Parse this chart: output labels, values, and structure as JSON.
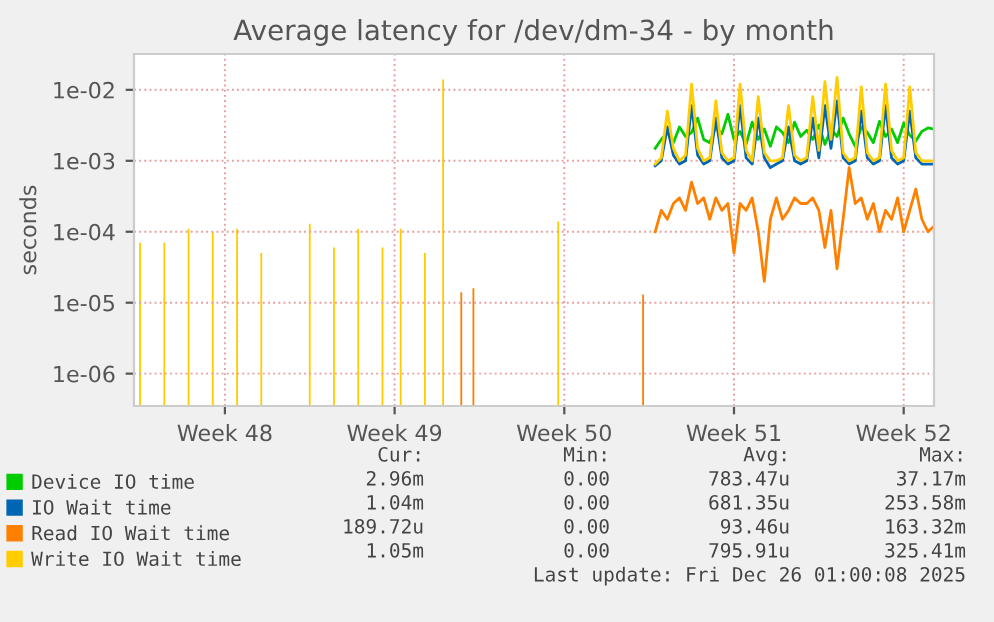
{
  "chart_data": {
    "type": "line",
    "title": "Average latency for /dev/dm-34 - by month",
    "ylabel": "seconds",
    "log": "y",
    "grid": true,
    "legend": "bottom",
    "marker": "none",
    "line_style": "solid",
    "categories": [
      null,
      null,
      null,
      null,
      null,
      null,
      null,
      null,
      null,
      null,
      null,
      null,
      null,
      null,
      null,
      "Week 48",
      null,
      null,
      null,
      null,
      null,
      null,
      null,
      null,
      null,
      null,
      null,
      null,
      null,
      null,
      null,
      null,
      null,
      null,
      null,
      null,
      null,
      null,
      null,
      null,
      null,
      null,
      null,
      "Week 49",
      null,
      null,
      null,
      null,
      null,
      null,
      null,
      null,
      null,
      null,
      null,
      null,
      null,
      null,
      null,
      null,
      null,
      null,
      null,
      null,
      null,
      null,
      null,
      null,
      null,
      null,
      null,
      "Week 50",
      null,
      null,
      null,
      null,
      null,
      null,
      null,
      null,
      null,
      null,
      null,
      null,
      null,
      null,
      null,
      null,
      null,
      null,
      null,
      null,
      null,
      null,
      null,
      null,
      null,
      null,
      null,
      "Week 51",
      null,
      null,
      null,
      null,
      null,
      null,
      null,
      null,
      null,
      null,
      null,
      null,
      null,
      null,
      null,
      null,
      null,
      null,
      null,
      null,
      null,
      null,
      null,
      null,
      null,
      null,
      null,
      "Week 52",
      null,
      null,
      null,
      null,
      null
    ],
    "ylim": [
      3.5e-07,
      0.032
    ],
    "yticks": [
      {
        "value": 1e-06,
        "label": "1e-06"
      },
      {
        "value": 1e-05,
        "label": "1e-05"
      },
      {
        "value": 0.0001,
        "label": "1e-04"
      },
      {
        "value": 0.001,
        "label": "1e-03"
      },
      {
        "value": 0.01,
        "label": "1e-02"
      }
    ],
    "annotations": [
      "Cur:",
      "Min:",
      "Avg:",
      "Max:",
      "2.96m",
      "0.00",
      "783.47u",
      "37.17m",
      "1.04m",
      "0.00",
      "681.35u",
      "253.58m",
      "189.72u",
      "0.00",
      "93.46u",
      "163.32m",
      "1.05m",
      "0.00",
      "795.91u",
      "325.41m",
      "Last update: Fri Dec 26 01:00:08 2025"
    ],
    "series": [
      {
        "name": "Device IO time",
        "color": "#00cc00",
        "values": [
          null,
          null,
          null,
          null,
          null,
          null,
          null,
          null,
          null,
          null,
          null,
          null,
          null,
          null,
          null,
          null,
          null,
          null,
          null,
          null,
          null,
          null,
          null,
          null,
          null,
          null,
          null,
          null,
          null,
          null,
          null,
          null,
          null,
          null,
          null,
          null,
          null,
          null,
          null,
          null,
          null,
          null,
          null,
          null,
          null,
          null,
          null,
          null,
          null,
          null,
          null,
          null,
          null,
          null,
          null,
          null,
          null,
          null,
          null,
          null,
          null,
          null,
          null,
          null,
          null,
          null,
          null,
          null,
          null,
          null,
          null,
          null,
          null,
          null,
          null,
          null,
          null,
          null,
          null,
          null,
          null,
          null,
          null,
          null,
          null,
          null,
          0.0015,
          0.002,
          0.0025,
          0.0018,
          0.003,
          0.0022,
          0.0025,
          0.004,
          0.002,
          0.0018,
          0.003,
          0.0024,
          0.0045,
          0.002,
          0.0026,
          0.0017,
          0.0035,
          0.002,
          0.0028,
          0.0016,
          0.003,
          0.0025,
          0.0018,
          0.0035,
          0.0022,
          0.0027,
          0.002,
          0.0032,
          0.0017,
          0.0028,
          0.0022,
          0.004,
          0.0024,
          0.0016,
          0.003,
          0.0025,
          0.0018,
          0.0036,
          0.0022,
          0.0028,
          0.0018,
          0.0034,
          0.0023,
          0.0019,
          0.0026,
          0.0029,
          0.0028
        ]
      },
      {
        "name": "IO Wait time",
        "color": "#0066b3",
        "values": [
          null,
          null,
          null,
          null,
          null,
          null,
          null,
          null,
          null,
          null,
          null,
          null,
          null,
          null,
          null,
          null,
          null,
          null,
          null,
          null,
          null,
          null,
          null,
          null,
          null,
          null,
          null,
          null,
          null,
          null,
          null,
          null,
          null,
          null,
          null,
          null,
          null,
          null,
          null,
          null,
          null,
          null,
          null,
          null,
          null,
          null,
          null,
          null,
          null,
          null,
          null,
          null,
          null,
          null,
          null,
          null,
          null,
          null,
          null,
          null,
          null,
          null,
          null,
          null,
          null,
          null,
          null,
          null,
          null,
          null,
          null,
          null,
          null,
          null,
          null,
          null,
          null,
          null,
          null,
          null,
          null,
          null,
          null,
          null,
          null,
          null,
          0.00085,
          0.001,
          0.003,
          0.0012,
          0.0009,
          0.001,
          0.006,
          0.0012,
          0.0009,
          0.001,
          0.004,
          0.0011,
          0.0009,
          0.001,
          0.006,
          0.0011,
          0.0009,
          0.004,
          0.0011,
          0.0008,
          0.0009,
          0.001,
          0.003,
          0.001,
          0.0009,
          0.001,
          0.004,
          0.0011,
          0.006,
          0.0015,
          0.007,
          0.0011,
          0.0009,
          0.001,
          0.005,
          0.0011,
          0.0009,
          0.001,
          0.006,
          0.0011,
          0.0009,
          0.001,
          0.005,
          0.0011,
          0.0009,
          0.0009,
          0.0009
        ]
      },
      {
        "name": "Read IO Wait time",
        "color": "#ff8000",
        "values": [
          null,
          null,
          null,
          null,
          null,
          null,
          null,
          null,
          null,
          null,
          null,
          null,
          null,
          null,
          null,
          null,
          null,
          null,
          null,
          null,
          null,
          null,
          null,
          null,
          null,
          null,
          null,
          null,
          null,
          null,
          null,
          null,
          null,
          null,
          null,
          null,
          null,
          null,
          null,
          null,
          null,
          null,
          null,
          null,
          null,
          null,
          null,
          null,
          null,
          null,
          null,
          null,
          null,
          null,
          null,
          null,
          null,
          null,
          null,
          null,
          null,
          null,
          null,
          null,
          null,
          null,
          null,
          null,
          null,
          null,
          null,
          null,
          null,
          null,
          null,
          null,
          null,
          null,
          null,
          null,
          null,
          null,
          null,
          null,
          null,
          null,
          0.0001,
          0.0002,
          0.00015,
          0.00025,
          0.0003,
          0.0002,
          0.0005,
          0.00025,
          0.0003,
          0.00015,
          0.0003,
          0.0002,
          0.00025,
          5e-05,
          0.00025,
          0.0002,
          0.0003,
          0.0001,
          2e-05,
          0.00015,
          0.0003,
          0.00015,
          0.0002,
          0.0003,
          0.00025,
          0.00025,
          0.0003,
          0.0002,
          6e-05,
          0.0002,
          3e-05,
          0.00015,
          0.0008,
          0.00025,
          0.0003,
          0.00015,
          0.00025,
          0.0001,
          0.0002,
          0.00015,
          0.0003,
          0.0001,
          0.0002,
          0.0004,
          0.00015,
          0.0001,
          0.00012
        ]
      },
      {
        "name": "Write IO Wait time",
        "color": "#ffcc00",
        "values": [
          null,
          null,
          null,
          null,
          null,
          null,
          null,
          null,
          null,
          null,
          null,
          null,
          null,
          null,
          null,
          null,
          null,
          null,
          null,
          null,
          null,
          null,
          null,
          null,
          null,
          null,
          null,
          null,
          null,
          null,
          null,
          null,
          null,
          null,
          null,
          null,
          null,
          null,
          null,
          null,
          null,
          null,
          null,
          null,
          null,
          null,
          null,
          null,
          null,
          null,
          null,
          null,
          null,
          null,
          null,
          null,
          null,
          null,
          null,
          null,
          null,
          null,
          null,
          null,
          null,
          null,
          null,
          null,
          null,
          null,
          null,
          null,
          null,
          null,
          null,
          null,
          null,
          null,
          null,
          null,
          null,
          null,
          null,
          null,
          null,
          null,
          0.0009,
          0.0011,
          0.005,
          0.0015,
          0.001,
          0.0012,
          0.012,
          0.0015,
          0.001,
          0.0011,
          0.007,
          0.0013,
          0.001,
          0.0011,
          0.012,
          0.0014,
          0.001,
          0.008,
          0.0013,
          0.001,
          0.001,
          0.0011,
          0.006,
          0.0012,
          0.001,
          0.0011,
          0.008,
          0.0014,
          0.013,
          0.002,
          0.015,
          0.0013,
          0.001,
          0.0011,
          0.011,
          0.0013,
          0.001,
          0.0011,
          0.012,
          0.0014,
          0.001,
          0.0011,
          0.011,
          0.0013,
          0.001,
          0.001,
          0.001
        ]
      },
      {
        "type": "bar",
        "color": "#ff8000",
        "values": [
          null,
          null,
          null,
          null,
          null,
          null,
          null,
          null,
          null,
          null,
          null,
          null,
          null,
          null,
          null,
          null,
          null,
          null,
          null,
          null,
          null,
          null,
          null,
          null,
          null,
          null,
          null,
          null,
          null,
          null,
          null,
          null,
          null,
          null,
          null,
          null,
          null,
          null,
          null,
          null,
          null,
          null,
          null,
          null,
          null,
          null,
          null,
          null,
          null,
          null,
          null,
          null,
          null,
          null,
          1.4e-05,
          null,
          1.6e-05,
          null,
          null,
          null,
          null,
          null,
          null,
          null,
          null,
          null,
          null,
          null,
          null,
          null,
          null,
          null,
          null,
          null,
          null,
          null,
          null,
          null,
          null,
          null,
          null,
          null,
          null,
          null,
          1.3e-05,
          null,
          null,
          null,
          null,
          null,
          null,
          null,
          null,
          null,
          null,
          null,
          null,
          null,
          null,
          null,
          null,
          null,
          null,
          null,
          null,
          null,
          null,
          null,
          null,
          null,
          null,
          null,
          null,
          null,
          null,
          null,
          null,
          null,
          null,
          null,
          null,
          null,
          null,
          null,
          null,
          null,
          null,
          null,
          null,
          null,
          null,
          null,
          null
        ]
      },
      {
        "type": "bar",
        "color": "#ffcc00",
        "values": [
          null,
          7e-05,
          null,
          null,
          null,
          7e-05,
          null,
          null,
          null,
          0.00011,
          null,
          null,
          null,
          0.0001,
          null,
          null,
          null,
          0.00011,
          null,
          null,
          null,
          5e-05,
          null,
          null,
          null,
          null,
          null,
          null,
          null,
          0.00013,
          null,
          null,
          null,
          6e-05,
          null,
          null,
          null,
          0.00011,
          null,
          null,
          null,
          6e-05,
          null,
          null,
          0.00011,
          null,
          null,
          null,
          5e-05,
          null,
          null,
          0.014,
          null,
          null,
          null,
          null,
          null,
          null,
          null,
          null,
          null,
          null,
          null,
          null,
          null,
          null,
          null,
          null,
          null,
          null,
          0.00014,
          null,
          null,
          null,
          null,
          null,
          null,
          null,
          null,
          null,
          null,
          null,
          null,
          null,
          null,
          null,
          null,
          null,
          null,
          null,
          null,
          null,
          null,
          null,
          null,
          null,
          null,
          null,
          null,
          null,
          null,
          null,
          null,
          null,
          null,
          null,
          null,
          null,
          null,
          null,
          null,
          null,
          null,
          null,
          null,
          null,
          null,
          null,
          null,
          null,
          null,
          null,
          null,
          null,
          null,
          null,
          null,
          null,
          null,
          null,
          null,
          null,
          null
        ]
      }
    ]
  }
}
